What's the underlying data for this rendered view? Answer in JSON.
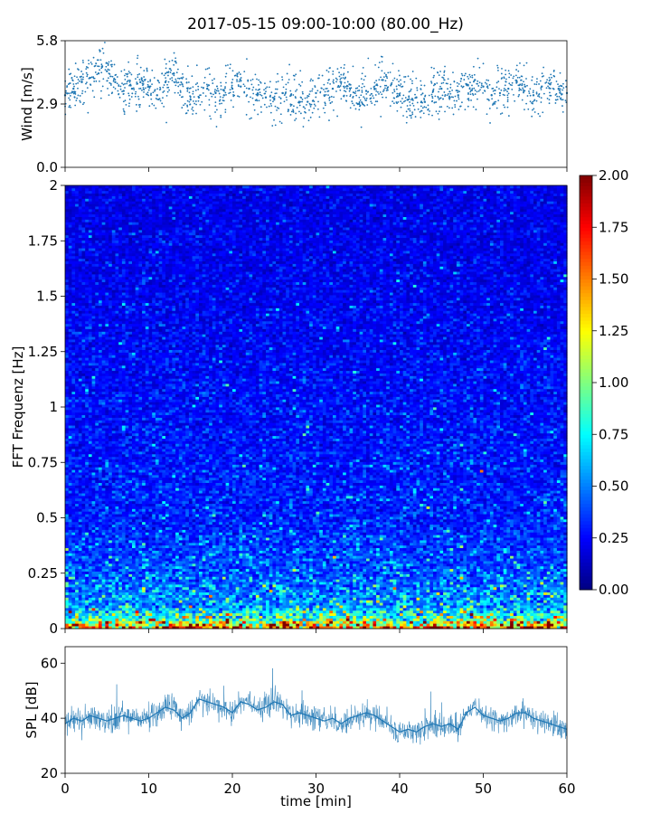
{
  "title": "2017-05-15 09:00-10:00 (80.00_Hz)",
  "chart_data": [
    {
      "type": "scatter",
      "ylabel": "Wind [m/s]",
      "xlim": [
        0,
        60
      ],
      "ylim": [
        0,
        5.8
      ],
      "yticks": [
        {
          "v": 0,
          "label": "0.0"
        },
        {
          "v": 2.9,
          "label": "2.9"
        },
        {
          "v": 5.8,
          "label": "5.8"
        }
      ],
      "color": "#1f77b4",
      "x": [
        0,
        1,
        2,
        3,
        4,
        5,
        6,
        7,
        8,
        9,
        10,
        11,
        12,
        13,
        14,
        15,
        16,
        17,
        18,
        19,
        20,
        21,
        22,
        23,
        24,
        25,
        26,
        27,
        28,
        29,
        30,
        31,
        32,
        33,
        34,
        35,
        36,
        37,
        38,
        39,
        40,
        41,
        42,
        43,
        44,
        45,
        46,
        47,
        48,
        49,
        50,
        51,
        52,
        53,
        54,
        55,
        56,
        57,
        58,
        59,
        60
      ],
      "y": [
        3.3,
        3.6,
        3.9,
        4.1,
        4.3,
        4.4,
        3.9,
        3.5,
        3.6,
        3.9,
        3.7,
        3.3,
        3.9,
        4.3,
        3.8,
        3.1,
        3.2,
        3.6,
        3.4,
        3.3,
        3.6,
        3.7,
        3.6,
        3.3,
        3.2,
        3.1,
        3.4,
        3.3,
        3.0,
        3.0,
        3.4,
        3.3,
        3.6,
        3.9,
        3.8,
        2.9,
        3.5,
        3.6,
        4.0,
        3.8,
        3.3,
        3.1,
        3.2,
        3.0,
        3.5,
        3.6,
        3.2,
        3.3,
        3.8,
        4.0,
        3.7,
        3.3,
        3.4,
        3.6,
        3.9,
        3.7,
        3.3,
        3.7,
        3.8,
        3.6,
        3.4
      ]
    },
    {
      "type": "heatmap",
      "ylabel": "FFT Frequenz [Hz]",
      "xlim": [
        0,
        60
      ],
      "ylim": [
        0,
        2
      ],
      "yticks": [
        {
          "v": 0,
          "label": "0"
        },
        {
          "v": 0.25,
          "label": "0.25"
        },
        {
          "v": 0.5,
          "label": "0.5"
        },
        {
          "v": 0.75,
          "label": "0.75"
        },
        {
          "v": 1,
          "label": "1"
        },
        {
          "v": 1.25,
          "label": "1.25"
        },
        {
          "v": 1.5,
          "label": "1.5"
        },
        {
          "v": 1.75,
          "label": "1.75"
        },
        {
          "v": 2,
          "label": "2"
        }
      ],
      "colormap": "jet",
      "colorbar": {
        "range": [
          0,
          2
        ],
        "ticks": [
          {
            "v": 0,
            "label": "0.00"
          },
          {
            "v": 0.25,
            "label": "0.25"
          },
          {
            "v": 0.5,
            "label": "0.50"
          },
          {
            "v": 0.75,
            "label": "0.75"
          },
          {
            "v": 1,
            "label": "1.00"
          },
          {
            "v": 1.25,
            "label": "1.25"
          },
          {
            "v": 1.5,
            "label": "1.50"
          },
          {
            "v": 1.75,
            "label": "1.75"
          },
          {
            "v": 2,
            "label": "2.00"
          }
        ]
      },
      "mean_by_frequency": [
        {
          "f": 0.0,
          "value": 1.6
        },
        {
          "f": 0.04,
          "value": 0.9
        },
        {
          "f": 0.1,
          "value": 0.55
        },
        {
          "f": 0.25,
          "value": 0.4
        },
        {
          "f": 0.5,
          "value": 0.3
        },
        {
          "f": 1.0,
          "value": 0.26
        },
        {
          "f": 1.5,
          "value": 0.22
        },
        {
          "f": 2.0,
          "value": 0.2
        }
      ]
    },
    {
      "type": "line",
      "ylabel": "SPL [dB]",
      "xlabel": "time [min]",
      "xlim": [
        0,
        60
      ],
      "ylim": [
        20,
        66
      ],
      "xticks": [
        {
          "v": 0,
          "label": "0"
        },
        {
          "v": 10,
          "label": "10"
        },
        {
          "v": 20,
          "label": "20"
        },
        {
          "v": 30,
          "label": "30"
        },
        {
          "v": 40,
          "label": "40"
        },
        {
          "v": 50,
          "label": "50"
        },
        {
          "v": 60,
          "label": "60"
        }
      ],
      "yticks": [
        {
          "v": 20,
          "label": "20"
        },
        {
          "v": 40,
          "label": "40"
        },
        {
          "v": 60,
          "label": "60"
        }
      ],
      "color": "#1f77b4",
      "x": [
        0,
        1,
        2,
        3,
        4,
        5,
        6,
        7,
        8,
        9,
        10,
        11,
        12,
        13,
        14,
        15,
        16,
        17,
        18,
        19,
        20,
        21,
        22,
        23,
        24,
        25,
        26,
        27,
        28,
        29,
        30,
        31,
        32,
        33,
        34,
        35,
        36,
        37,
        38,
        39,
        40,
        41,
        42,
        43,
        44,
        45,
        46,
        47,
        48,
        49,
        50,
        51,
        52,
        53,
        54,
        55,
        56,
        57,
        58,
        59,
        60
      ],
      "y": [
        38,
        40,
        39,
        41,
        40,
        39,
        40,
        41,
        40,
        39,
        40,
        42,
        44,
        43,
        40,
        42,
        47,
        46,
        45,
        44,
        42,
        46,
        45,
        43,
        44,
        46,
        45,
        41,
        42,
        41,
        40,
        39,
        40,
        38,
        40,
        41,
        42,
        41,
        39,
        37,
        35,
        36,
        35,
        37,
        38,
        37,
        38,
        36,
        42,
        44,
        41,
        40,
        39,
        40,
        42,
        42,
        40,
        39,
        38,
        37,
        36
      ]
    }
  ]
}
